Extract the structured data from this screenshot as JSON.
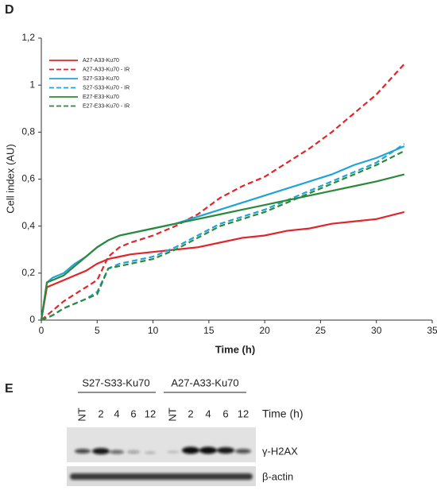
{
  "panel_label": "D",
  "chart_data": {
    "type": "line",
    "xlabel": "Time (h)",
    "ylabel": "Cell index (AU)",
    "x": [
      0,
      0.5,
      1,
      2,
      3,
      4,
      5,
      6,
      7,
      8,
      10,
      12,
      14,
      16,
      18,
      20,
      22,
      24,
      26,
      28,
      30,
      32.5
    ],
    "xlim": [
      0,
      35
    ],
    "xticks": [
      0,
      5,
      10,
      15,
      20,
      25,
      30,
      35
    ],
    "ylim": [
      0,
      1.2
    ],
    "yticks": [
      0,
      {
        "value": 0.2,
        "label": "0,2"
      },
      {
        "value": 0.4,
        "label": "0,4"
      },
      {
        "value": 0.6,
        "label": "0,6"
      },
      {
        "value": 0.8,
        "label": "0,8"
      },
      1,
      {
        "value": 1.2,
        "label": "1,2"
      }
    ],
    "legend": "upper left",
    "series": [
      {
        "name": "A27-A33-Ku70",
        "color": "#e0262b",
        "dashed": false,
        "values": [
          0,
          0.14,
          0.15,
          0.17,
          0.19,
          0.21,
          0.24,
          0.26,
          0.27,
          0.28,
          0.29,
          0.3,
          0.31,
          0.33,
          0.35,
          0.36,
          0.38,
          0.39,
          0.41,
          0.42,
          0.43,
          0.46
        ]
      },
      {
        "name": "A27-A33-Ku70 - IR",
        "color": "#e0262b",
        "dashed": true,
        "values": [
          0,
          0.02,
          0.04,
          0.08,
          0.11,
          0.14,
          0.17,
          0.27,
          0.31,
          0.33,
          0.36,
          0.4,
          0.45,
          0.52,
          0.57,
          0.61,
          0.67,
          0.73,
          0.8,
          0.88,
          0.96,
          1.09
        ]
      },
      {
        "name": "S27-S33-Ku70",
        "color": "#22a3d8",
        "dashed": false,
        "values": [
          0,
          0.16,
          0.18,
          0.2,
          0.24,
          0.27,
          0.31,
          0.34,
          0.36,
          0.37,
          0.39,
          0.41,
          0.44,
          0.47,
          0.5,
          0.53,
          0.56,
          0.59,
          0.62,
          0.66,
          0.69,
          0.74
        ]
      },
      {
        "name": "S27-S33-Ku70 - IR",
        "color": "#22a3d8",
        "dashed": true,
        "values": [
          0,
          0.01,
          0.02,
          0.05,
          0.07,
          0.09,
          0.12,
          0.22,
          0.24,
          0.25,
          0.27,
          0.31,
          0.36,
          0.41,
          0.44,
          0.47,
          0.51,
          0.55,
          0.59,
          0.63,
          0.67,
          0.75
        ]
      },
      {
        "name": "E27-E33-Ku70",
        "color": "#2a8a3a",
        "dashed": false,
        "values": [
          0,
          0.16,
          0.17,
          0.19,
          0.23,
          0.27,
          0.31,
          0.34,
          0.36,
          0.37,
          0.39,
          0.41,
          0.43,
          0.45,
          0.47,
          0.49,
          0.51,
          0.53,
          0.55,
          0.57,
          0.59,
          0.62
        ]
      },
      {
        "name": "E27-E33-Ku70 - IR",
        "color": "#2a8a3a",
        "dashed": true,
        "values": [
          0,
          0.01,
          0.02,
          0.05,
          0.07,
          0.09,
          0.11,
          0.22,
          0.23,
          0.24,
          0.26,
          0.3,
          0.35,
          0.4,
          0.43,
          0.46,
          0.5,
          0.54,
          0.58,
          0.62,
          0.66,
          0.72
        ]
      }
    ]
  },
  "blot": {
    "panel_label": "E",
    "groups": [
      "S27-S33-Ku70",
      "A27-A33-Ku70"
    ],
    "lanes": [
      "NT",
      "2",
      "4",
      "6",
      "12",
      "NT",
      "2",
      "4",
      "6",
      "12"
    ],
    "time_label": "Time (h)",
    "rows": [
      "γ-H2AX",
      "β-actin"
    ]
  }
}
